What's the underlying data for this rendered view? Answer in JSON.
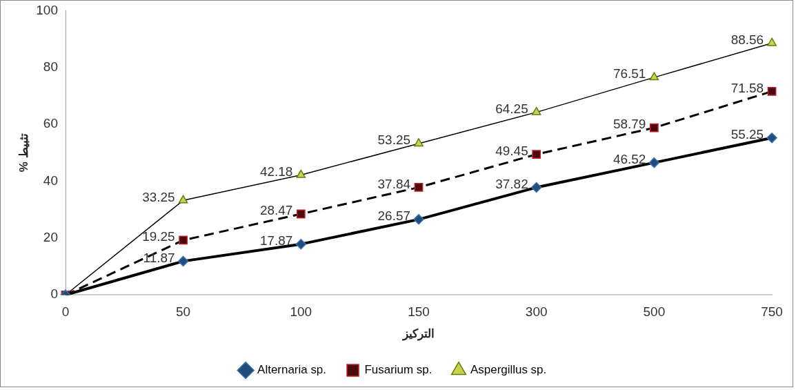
{
  "chart_data": {
    "type": "line",
    "xlabel": "التركيز",
    "ylabel": "% تثبيط",
    "categories": [
      "0",
      "50",
      "100",
      "150",
      "300",
      "500",
      "750"
    ],
    "series": [
      {
        "name": "Alternaria sp.",
        "color": "#1f4e79",
        "marker": "diamond",
        "line_style": "solid",
        "values": [
          0,
          11.87,
          17.87,
          26.57,
          37.82,
          46.52,
          55.25
        ],
        "value_labels": [
          null,
          "11.87",
          "17.87",
          "26.57",
          "37.82",
          "46.52",
          "55.25"
        ]
      },
      {
        "name": "Fusarium sp.",
        "color": "#4a0a0e",
        "marker": "square",
        "line_style": "dashed",
        "values": [
          0,
          19.25,
          28.47,
          37.84,
          49.45,
          58.79,
          71.58
        ],
        "value_labels": [
          null,
          "19.25",
          "28.47",
          "37.84",
          "49.45",
          "58.79",
          "71.58"
        ]
      },
      {
        "name": "Aspergillus sp.",
        "color": "#c8d24a",
        "marker": "triangle",
        "line_style": "solid",
        "values": [
          0,
          33.25,
          42.18,
          53.25,
          64.25,
          76.51,
          88.56
        ],
        "value_labels": [
          null,
          "33.25",
          "42.18",
          "53.25",
          "64.25",
          "76.51",
          "88.56"
        ]
      }
    ],
    "ylim": [
      0,
      100
    ],
    "yticks": [
      0,
      20,
      40,
      60,
      80,
      100
    ],
    "grid": false,
    "legend": "bottom"
  }
}
